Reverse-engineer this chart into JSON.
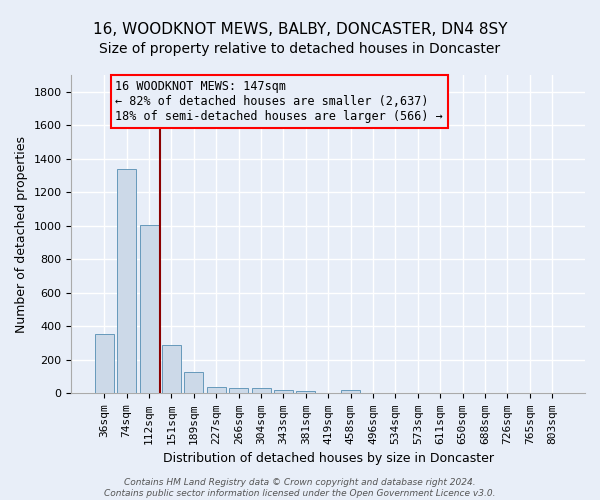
{
  "title": "16, WOODKNOT MEWS, BALBY, DONCASTER, DN4 8SY",
  "subtitle": "Size of property relative to detached houses in Doncaster",
  "xlabel": "Distribution of detached houses by size in Doncaster",
  "ylabel": "Number of detached properties",
  "bar_color": "#ccd9e8",
  "bar_edge_color": "#6699bb",
  "bg_color": "#e8eef8",
  "grid_color": "#c8d4e8",
  "categories": [
    "36sqm",
    "74sqm",
    "112sqm",
    "151sqm",
    "189sqm",
    "227sqm",
    "266sqm",
    "304sqm",
    "343sqm",
    "381sqm",
    "419sqm",
    "458sqm",
    "496sqm",
    "534sqm",
    "573sqm",
    "611sqm",
    "650sqm",
    "688sqm",
    "726sqm",
    "765sqm",
    "803sqm"
  ],
  "values": [
    355,
    1340,
    1005,
    290,
    130,
    40,
    35,
    30,
    20,
    15,
    0,
    20,
    0,
    0,
    0,
    0,
    0,
    0,
    0,
    0,
    0
  ],
  "ylim": [
    0,
    1900
  ],
  "yticks": [
    0,
    200,
    400,
    600,
    800,
    1000,
    1200,
    1400,
    1600,
    1800
  ],
  "red_line_x": 2.5,
  "annotation_line1": "16 WOODKNOT MEWS: 147sqm",
  "annotation_line2": "← 82% of detached houses are smaller (2,637)",
  "annotation_line3": "18% of semi-detached houses are larger (566) →",
  "footnote": "Contains HM Land Registry data © Crown copyright and database right 2024.\nContains public sector information licensed under the Open Government Licence v3.0.",
  "title_fontsize": 11,
  "subtitle_fontsize": 10,
  "annot_fontsize": 8.5,
  "tick_fontsize": 8,
  "ylabel_fontsize": 9,
  "xlabel_fontsize": 9
}
